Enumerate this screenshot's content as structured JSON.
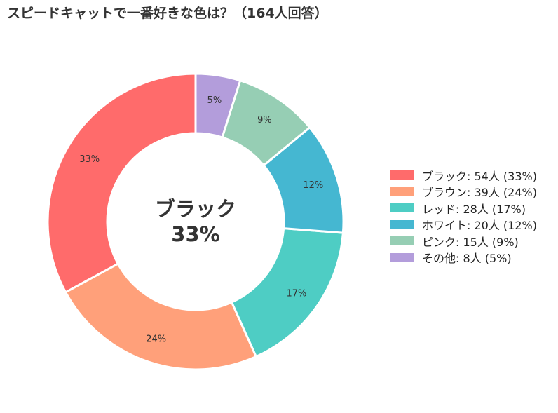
{
  "title": "スピードキャットで一番好きな色は？（164人回答）",
  "chart_data": {
    "type": "pie",
    "variant": "donut",
    "categories": [
      "ブラック",
      "ブラウン",
      "レッド",
      "ホワイト",
      "ピンク",
      "その他"
    ],
    "values": [
      54,
      39,
      28,
      20,
      15,
      8
    ],
    "percent_labels": [
      "33%",
      "24%",
      "17%",
      "12%",
      "9%",
      "5%"
    ],
    "unit": "人",
    "colors": [
      "#FF6B6B",
      "#FFA07A",
      "#4ECDC4",
      "#45B7D1",
      "#96CEB4",
      "#B39DDB"
    ],
    "legend_entries": [
      "ブラック:  54人 (33%)",
      "ブラウン:  39人 (24%)",
      "レッド:  28人 (17%)",
      "ホワイト:  20人 (12%)",
      "ピンク:  15人 (9%)",
      "その他:  8人 (5%)"
    ],
    "legend_position": "right",
    "center_label": {
      "name": "ブラック",
      "value": "33%"
    },
    "start": "top",
    "direction": "counterclockwise"
  }
}
